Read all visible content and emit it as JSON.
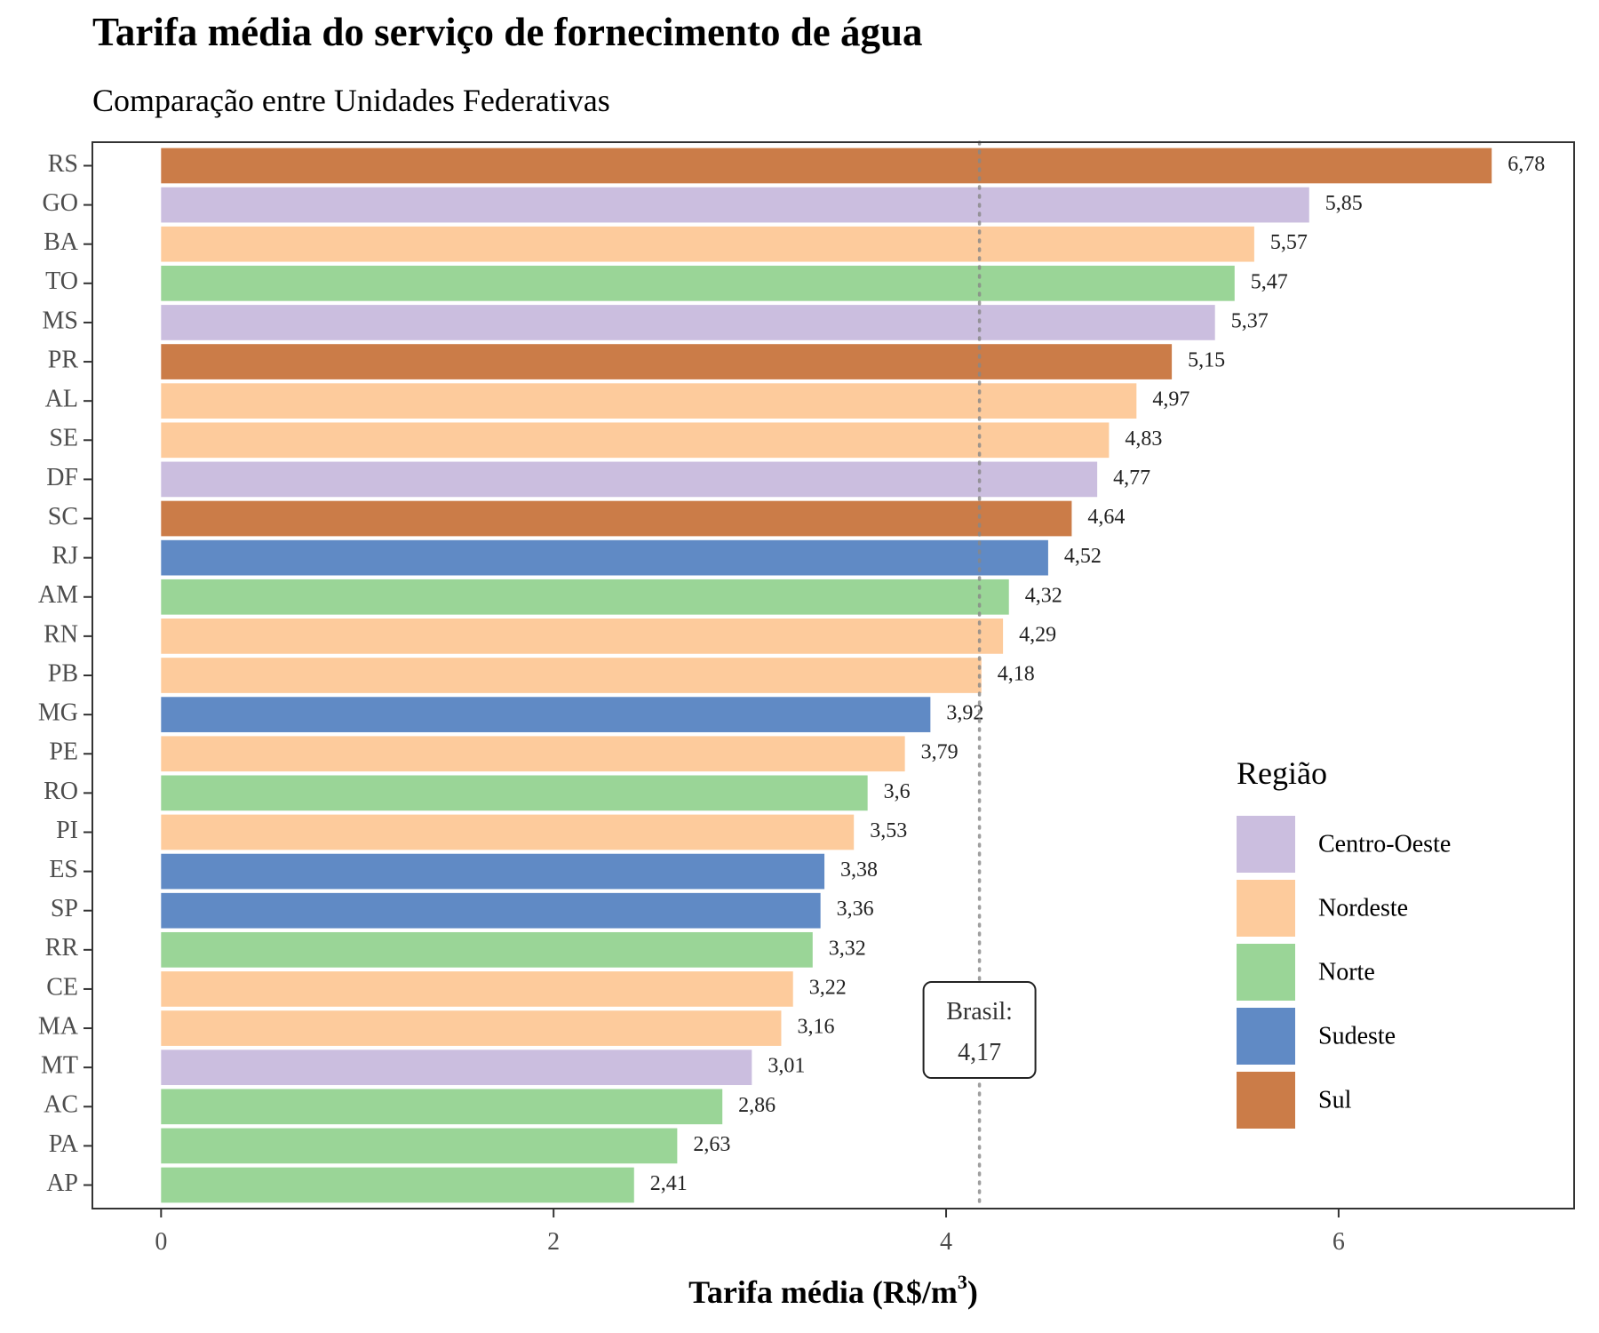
{
  "chart_data": {
    "type": "bar",
    "orientation": "horizontal",
    "title": "Tarifa média do serviço de fornecimento de água",
    "subtitle": "Comparação entre Unidades Federativas",
    "xlabel": "Tarifa média (R$/m",
    "xlabel_superscript": "3",
    "xlabel_suffix": ")",
    "xlim": [
      -0.35,
      7.2
    ],
    "x_ticks": [
      0,
      2,
      4,
      6
    ],
    "x_tick_labels": [
      "0",
      "2",
      "4",
      "6"
    ],
    "grid": false,
    "categories": [
      "RS",
      "GO",
      "BA",
      "TO",
      "MS",
      "PR",
      "AL",
      "SE",
      "DF",
      "SC",
      "RJ",
      "AM",
      "RN",
      "PB",
      "MG",
      "PE",
      "RO",
      "PI",
      "ES",
      "SP",
      "RR",
      "CE",
      "MA",
      "MT",
      "AC",
      "PA",
      "AP"
    ],
    "values": [
      6.78,
      5.85,
      5.57,
      5.47,
      5.37,
      5.15,
      4.97,
      4.83,
      4.77,
      4.64,
      4.52,
      4.32,
      4.29,
      4.18,
      3.92,
      3.79,
      3.6,
      3.53,
      3.38,
      3.36,
      3.32,
      3.22,
      3.16,
      3.01,
      2.86,
      2.63,
      2.41
    ],
    "value_labels": [
      "6,78",
      "5,85",
      "5,57",
      "5,47",
      "5,37",
      "5,15",
      "4,97",
      "4,83",
      "4,77",
      "4,64",
      "4,52",
      "4,32",
      "4,29",
      "4,18",
      "3,92",
      "3,79",
      "3,6",
      "3,53",
      "3,38",
      "3,36",
      "3,32",
      "3,22",
      "3,16",
      "3,01",
      "2,86",
      "2,63",
      "2,41"
    ],
    "regions": [
      "Sul",
      "Centro-Oeste",
      "Nordeste",
      "Norte",
      "Centro-Oeste",
      "Sul",
      "Nordeste",
      "Nordeste",
      "Centro-Oeste",
      "Sul",
      "Sudeste",
      "Norte",
      "Nordeste",
      "Nordeste",
      "Sudeste",
      "Nordeste",
      "Norte",
      "Nordeste",
      "Sudeste",
      "Sudeste",
      "Norte",
      "Nordeste",
      "Nordeste",
      "Centro-Oeste",
      "Norte",
      "Norte",
      "Norte"
    ],
    "reference": {
      "value": 4.17,
      "label_line1": "Brasil:",
      "label_line2": "4,17",
      "label_y_category": "MA",
      "style": "dotted"
    },
    "legend": {
      "title": "Região",
      "placement": "bottom-right",
      "entries": [
        {
          "name": "Centro-Oeste",
          "color": "#cbbedf"
        },
        {
          "name": "Nordeste",
          "color": "#fdcb9c"
        },
        {
          "name": "Norte",
          "color": "#9ad597"
        },
        {
          "name": "Sudeste",
          "color": "#608ac5"
        },
        {
          "name": "Sul",
          "color": "#cb7c48"
        }
      ]
    }
  }
}
